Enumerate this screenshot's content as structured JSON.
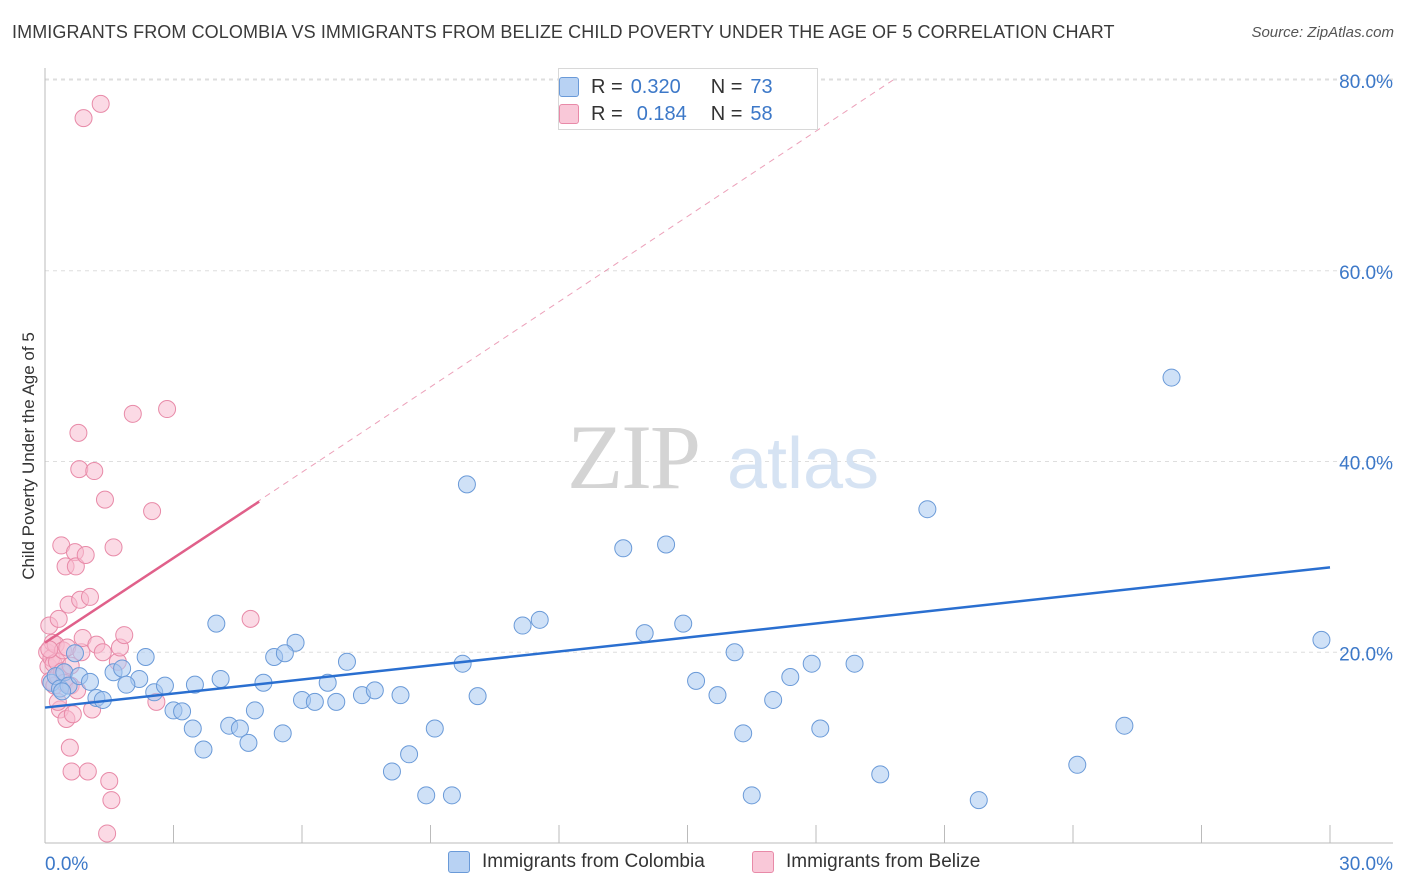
{
  "title": "IMMIGRANTS FROM COLOMBIA VS IMMIGRANTS FROM BELIZE CHILD POVERTY UNDER THE AGE OF 5 CORRELATION CHART",
  "source": "Source: ZipAtlas.com",
  "watermark": {
    "zip": "ZIP",
    "atlas": "atlas"
  },
  "legend_top": [
    {
      "r_label": "R =",
      "r_value": "0.320",
      "n_label": "N =",
      "n_value": "73"
    },
    {
      "r_label": "R =",
      "r_value": "0.184",
      "n_label": "N =",
      "n_value": "58"
    }
  ],
  "colors": {
    "colombia_fill": "#a8c8f0",
    "colombia_stroke": "#6a9ad8",
    "colombia_line": "#2a6fd0",
    "belize_fill": "#f8bcd0",
    "belize_stroke": "#e88aa8",
    "belize_line": "#e0608a",
    "axis_label": "#3c78c8",
    "grid": "#dedede"
  },
  "chart_data": {
    "type": "scatter",
    "title": "IMMIGRANTS FROM COLOMBIA VS IMMIGRANTS FROM BELIZE CHILD POVERTY UNDER THE AGE OF 5 CORRELATION CHART",
    "xlabel": "",
    "ylabel": "Child Poverty Under the Age of 5",
    "xlim": [
      0,
      30
    ],
    "ylim": [
      0,
      80
    ],
    "x_tick_labels": [
      "0.0%",
      "30.0%"
    ],
    "y_ticks": [
      20,
      40,
      60,
      80
    ],
    "y_tick_labels": [
      "20.0%",
      "40.0%",
      "60.0%",
      "80.0%"
    ],
    "legend_position": "bottom",
    "series": [
      {
        "name": "Immigrants from Colombia",
        "r": 0.32,
        "n": 73,
        "trend": [
          [
            0,
            14.2
          ],
          [
            30,
            28.9
          ]
        ],
        "points": [
          [
            0.15,
            16.8
          ],
          [
            0.25,
            17.5
          ],
          [
            0.35,
            16.2
          ],
          [
            0.45,
            17.9
          ],
          [
            0.55,
            16.5
          ],
          [
            0.7,
            19.9
          ],
          [
            0.8,
            17.5
          ],
          [
            1.05,
            16.9
          ],
          [
            1.2,
            15.2
          ],
          [
            1.35,
            15.0
          ],
          [
            1.6,
            17.9
          ],
          [
            1.8,
            18.3
          ],
          [
            2.2,
            17.2
          ],
          [
            2.35,
            19.5
          ],
          [
            2.55,
            15.8
          ],
          [
            3.0,
            13.9
          ],
          [
            3.2,
            13.8
          ],
          [
            3.45,
            12.0
          ],
          [
            3.7,
            9.8
          ],
          [
            4.0,
            23.0
          ],
          [
            4.3,
            12.3
          ],
          [
            4.55,
            12.0
          ],
          [
            4.75,
            10.5
          ],
          [
            4.9,
            13.9
          ],
          [
            5.1,
            16.8
          ],
          [
            5.35,
            19.5
          ],
          [
            5.55,
            11.5
          ],
          [
            5.85,
            21.0
          ],
          [
            6.0,
            15.0
          ],
          [
            6.3,
            14.8
          ],
          [
            6.6,
            16.8
          ],
          [
            6.8,
            14.8
          ],
          [
            7.05,
            19.0
          ],
          [
            7.4,
            15.5
          ],
          [
            7.7,
            16.0
          ],
          [
            8.1,
            7.5
          ],
          [
            8.3,
            15.5
          ],
          [
            8.5,
            9.3
          ],
          [
            8.9,
            5.0
          ],
          [
            9.1,
            12.0
          ],
          [
            9.5,
            5.0
          ],
          [
            9.75,
            18.8
          ],
          [
            10.1,
            15.4
          ],
          [
            11.15,
            22.8
          ],
          [
            11.55,
            23.4
          ],
          [
            9.85,
            37.6
          ],
          [
            13.5,
            30.9
          ],
          [
            14.0,
            22.0
          ],
          [
            14.5,
            31.3
          ],
          [
            14.9,
            23.0
          ],
          [
            15.2,
            17.0
          ],
          [
            15.7,
            15.5
          ],
          [
            16.1,
            20.0
          ],
          [
            16.3,
            11.5
          ],
          [
            16.5,
            5.0
          ],
          [
            17.0,
            15.0
          ],
          [
            17.4,
            17.4
          ],
          [
            17.9,
            18.8
          ],
          [
            18.1,
            12.0
          ],
          [
            18.9,
            18.8
          ],
          [
            19.5,
            7.2
          ],
          [
            20.6,
            35.0
          ],
          [
            21.8,
            4.5
          ],
          [
            24.1,
            8.2
          ],
          [
            25.2,
            12.3
          ],
          [
            26.3,
            48.8
          ],
          [
            29.8,
            21.3
          ],
          [
            0.4,
            15.9
          ],
          [
            1.9,
            16.6
          ],
          [
            2.8,
            16.5
          ],
          [
            3.5,
            16.6
          ],
          [
            4.1,
            17.2
          ],
          [
            5.6,
            19.9
          ]
        ]
      },
      {
        "name": "Immigrants from Belize",
        "r": 0.184,
        "n": 58,
        "trend": [
          [
            0,
            21.0
          ],
          [
            5.0,
            35.8
          ]
        ],
        "trend_extended": [
          [
            0,
            21.0
          ],
          [
            19.8,
            80.0
          ]
        ],
        "points": [
          [
            0.05,
            20.0
          ],
          [
            0.08,
            18.5
          ],
          [
            0.1,
            22.8
          ],
          [
            0.12,
            17.0
          ],
          [
            0.15,
            19.4
          ],
          [
            0.18,
            21.0
          ],
          [
            0.2,
            18.8
          ],
          [
            0.22,
            16.5
          ],
          [
            0.25,
            20.8
          ],
          [
            0.28,
            19.0
          ],
          [
            0.3,
            17.5
          ],
          [
            0.32,
            23.5
          ],
          [
            0.35,
            14.0
          ],
          [
            0.38,
            31.2
          ],
          [
            0.4,
            18.0
          ],
          [
            0.42,
            20.2
          ],
          [
            0.45,
            16.8
          ],
          [
            0.48,
            29.0
          ],
          [
            0.5,
            13.0
          ],
          [
            0.52,
            20.5
          ],
          [
            0.55,
            25.0
          ],
          [
            0.58,
            10.0
          ],
          [
            0.6,
            16.5
          ],
          [
            0.62,
            7.5
          ],
          [
            0.65,
            13.5
          ],
          [
            0.7,
            30.5
          ],
          [
            0.72,
            29.0
          ],
          [
            0.75,
            16.0
          ],
          [
            0.78,
            43.0
          ],
          [
            0.8,
            39.2
          ],
          [
            0.82,
            25.5
          ],
          [
            0.85,
            20.0
          ],
          [
            0.88,
            21.5
          ],
          [
            0.9,
            76.0
          ],
          [
            0.95,
            30.2
          ],
          [
            1.0,
            7.5
          ],
          [
            1.05,
            25.8
          ],
          [
            1.1,
            14.0
          ],
          [
            1.15,
            39.0
          ],
          [
            1.2,
            20.8
          ],
          [
            1.3,
            77.5
          ],
          [
            1.35,
            20.0
          ],
          [
            1.4,
            36.0
          ],
          [
            1.45,
            1.0
          ],
          [
            1.5,
            6.5
          ],
          [
            1.55,
            4.5
          ],
          [
            1.6,
            31.0
          ],
          [
            1.7,
            19.0
          ],
          [
            1.75,
            20.5
          ],
          [
            1.85,
            21.8
          ],
          [
            2.05,
            45.0
          ],
          [
            2.5,
            34.8
          ],
          [
            2.6,
            14.8
          ],
          [
            2.85,
            45.5
          ],
          [
            4.8,
            23.5
          ],
          [
            0.1,
            20.3
          ],
          [
            0.3,
            14.8
          ],
          [
            0.6,
            18.6
          ]
        ]
      }
    ]
  },
  "bottom_legend": [
    "Immigrants from Colombia",
    "Immigrants from Belize"
  ]
}
